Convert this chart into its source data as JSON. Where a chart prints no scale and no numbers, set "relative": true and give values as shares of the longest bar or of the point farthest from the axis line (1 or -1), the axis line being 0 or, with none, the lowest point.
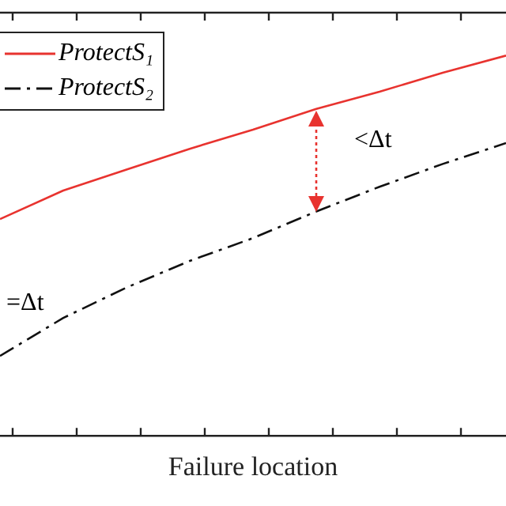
{
  "chart_data": {
    "type": "line",
    "xlabel": "Failure location",
    "categories": [
      null,
      null,
      null,
      null,
      null,
      null,
      null,
      null,
      null
    ],
    "relative": true,
    "grid": false,
    "legend": "top left",
    "marker": "none",
    "series": [
      {
        "name": "ProtectS₁",
        "color": "#e8332f",
        "line_style": "solid",
        "values": [
          0.57,
          0.645,
          0.7,
          0.755,
          0.805,
          0.86,
          0.905,
          0.955,
          1
        ]
      },
      {
        "name": "ProtectS₂",
        "color": "#111111",
        "line_style": "dashed",
        "values": [
          0.21,
          0.31,
          0.39,
          0.46,
          0.52,
          0.59,
          0.655,
          0.715,
          0.77
        ]
      }
    ],
    "annotations": [
      "<Δt",
      "=Δt"
    ]
  }
}
